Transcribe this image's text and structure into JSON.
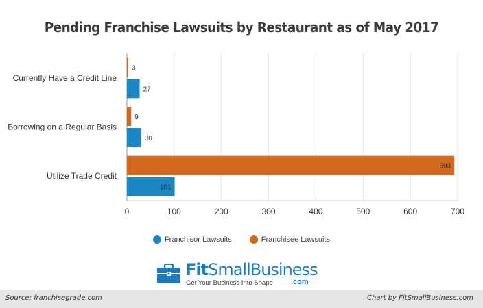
{
  "chart_data": {
    "type": "bar",
    "orientation": "horizontal",
    "title": "Pending Franchise Lawsuits by Restaurant as of May 2017",
    "categories": [
      "Currently Have a Credit Line",
      "Borrowing on a Regular Basis",
      "Utilize Trade Credit"
    ],
    "series": [
      {
        "name": "Franchisee Lawsuits",
        "color": "#d2691e",
        "values": [
          3,
          9,
          693
        ]
      },
      {
        "name": "Franchisor Lawsuits",
        "color": "#1a87c4",
        "values": [
          27,
          30,
          101
        ]
      }
    ],
    "xlim": [
      0,
      700
    ],
    "xticks": [
      0,
      100,
      200,
      300,
      400,
      500,
      600,
      700
    ],
    "grid": true,
    "legend_position": "bottom",
    "legend_order": [
      "Franchisor Lawsuits",
      "Franchisee Lawsuits"
    ]
  },
  "branding": {
    "logo_fit": "Fit",
    "logo_rest": "SmallBusiness",
    "logo_tagline": "Get Your Business Into Shape",
    "logo_com": ".com",
    "logo_icon": "briefcase-icon"
  },
  "footer": {
    "source": "Source: franchisegrade.com",
    "credit": "Chart by FitSmallBusiness.com"
  }
}
